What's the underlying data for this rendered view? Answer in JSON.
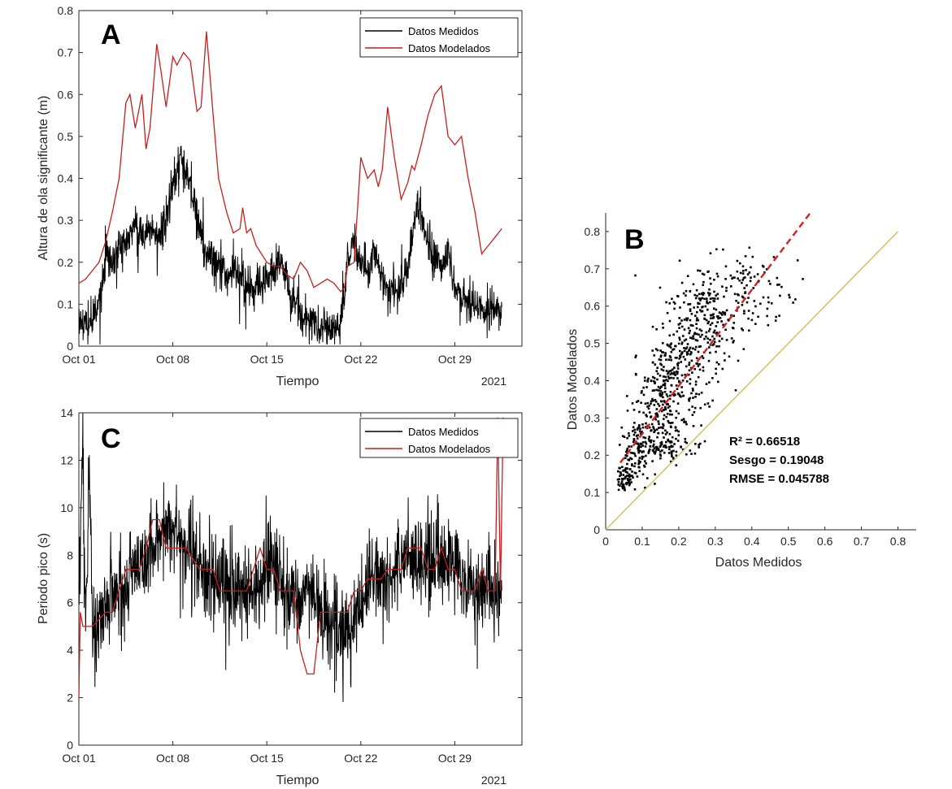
{
  "chart_data": [
    {
      "id": "A",
      "type": "line",
      "panel_label": "A",
      "xlabel": "Tiempo",
      "ylabel": "Altura de ola significante (m)",
      "x_year_label": "2021",
      "xlim": [
        0,
        33
      ],
      "ylim": [
        0,
        0.8
      ],
      "xticks": [
        0,
        7,
        14,
        21,
        28
      ],
      "xtick_labels": [
        "Oct 01",
        "Oct 08",
        "Oct 15",
        "Oct 22",
        "Oct 29"
      ],
      "yticks": [
        0,
        0.1,
        0.2,
        0.3,
        0.4,
        0.5,
        0.6,
        0.7,
        0.8
      ],
      "ytick_labels": [
        "0",
        "0.1",
        "0.2",
        "0.3",
        "0.4",
        "0.5",
        "0.6",
        "0.7",
        "0.8"
      ],
      "legend_position": "top-right",
      "series": [
        {
          "name": "Datos Medidos",
          "color": "#000000",
          "noise": 0.025,
          "x": [
            0,
            0.3,
            0.8,
            1.3,
            1.7,
            2.0,
            2.5,
            3.0,
            3.3,
            3.7,
            4.3,
            4.8,
            5.3,
            6.0,
            6.5,
            7.0,
            7.5,
            8.0,
            8.5,
            9.0,
            9.5,
            10.3,
            11.0,
            11.7,
            12.3,
            13.0,
            14.0,
            14.7,
            15.3,
            15.8,
            16.3,
            16.6,
            17.0,
            17.5,
            18.0,
            18.5,
            19.0,
            19.5,
            20.0,
            20.5,
            21.0,
            21.5,
            22.0,
            22.5,
            23.0,
            23.5,
            24.0,
            24.5,
            25.0,
            25.3,
            25.7,
            26.3,
            27.0,
            27.5,
            28.0,
            28.5,
            29.0,
            29.5,
            30.0,
            30.5,
            31.0,
            31.5
          ],
          "y": [
            0.05,
            0.06,
            0.05,
            0.08,
            0.13,
            0.22,
            0.2,
            0.24,
            0.22,
            0.27,
            0.3,
            0.25,
            0.28,
            0.27,
            0.3,
            0.38,
            0.44,
            0.42,
            0.34,
            0.28,
            0.22,
            0.2,
            0.17,
            0.18,
            0.15,
            0.14,
            0.15,
            0.2,
            0.19,
            0.1,
            0.1,
            0.08,
            0.07,
            0.06,
            0.05,
            0.05,
            0.05,
            0.05,
            0.19,
            0.25,
            0.19,
            0.18,
            0.22,
            0.17,
            0.14,
            0.13,
            0.15,
            0.18,
            0.3,
            0.35,
            0.29,
            0.21,
            0.2,
            0.23,
            0.13,
            0.11,
            0.1,
            0.09,
            0.08,
            0.08,
            0.09,
            0.08
          ]
        },
        {
          "name": "Datos Modelados",
          "color": "#c81e1e",
          "noise": 0,
          "x": [
            0,
            0.5,
            1.0,
            1.5,
            1.8,
            2.0,
            2.5,
            3.0,
            3.5,
            3.8,
            4.2,
            4.7,
            5.0,
            5.3,
            5.8,
            6.1,
            6.5,
            6.8,
            7.0,
            7.3,
            7.8,
            8.3,
            8.8,
            9.1,
            9.5,
            10.0,
            10.4,
            11.0,
            11.5,
            12.0,
            12.2,
            12.5,
            12.8,
            13.2,
            13.6,
            14.0,
            14.5,
            15.0,
            15.5,
            16.0,
            16.5,
            17.0,
            17.5,
            18.0,
            18.5,
            19.0,
            19.5,
            19.8,
            20.0,
            20.5,
            21.0,
            21.5,
            22.0,
            22.3,
            22.6,
            23.0,
            23.5,
            24.0,
            24.5,
            24.8,
            25.0,
            25.5,
            26.0,
            26.5,
            27.0,
            27.5,
            28.0,
            28.5,
            29.0,
            29.5,
            30.0,
            30.5,
            31.0,
            31.5
          ],
          "y": [
            0.15,
            0.16,
            0.18,
            0.2,
            0.23,
            0.25,
            0.32,
            0.4,
            0.58,
            0.6,
            0.52,
            0.6,
            0.47,
            0.52,
            0.72,
            0.66,
            0.57,
            0.64,
            0.69,
            0.67,
            0.7,
            0.68,
            0.56,
            0.57,
            0.75,
            0.55,
            0.4,
            0.32,
            0.27,
            0.28,
            0.33,
            0.27,
            0.28,
            0.24,
            0.22,
            0.2,
            0.19,
            0.19,
            0.17,
            0.16,
            0.2,
            0.18,
            0.14,
            0.15,
            0.16,
            0.15,
            0.13,
            0.14,
            0.19,
            0.2,
            0.45,
            0.4,
            0.42,
            0.38,
            0.42,
            0.57,
            0.45,
            0.35,
            0.39,
            0.43,
            0.42,
            0.48,
            0.55,
            0.6,
            0.62,
            0.5,
            0.48,
            0.5,
            0.4,
            0.32,
            0.22,
            0.24,
            0.26,
            0.28
          ]
        }
      ]
    },
    {
      "id": "B",
      "type": "scatter",
      "panel_label": "B",
      "xlabel": "Datos Medidos",
      "ylabel": "Datos Modelados",
      "xlim": [
        0,
        0.85
      ],
      "ylim": [
        0,
        0.85
      ],
      "xticks": [
        0,
        0.1,
        0.2,
        0.3,
        0.4,
        0.5,
        0.6,
        0.7,
        0.8
      ],
      "yticks": [
        0,
        0.1,
        0.2,
        0.3,
        0.4,
        0.5,
        0.6,
        0.7,
        0.8
      ],
      "tick_labels": [
        "0",
        "0.1",
        "0.2",
        "0.3",
        "0.4",
        "0.5",
        "0.6",
        "0.7",
        "0.8"
      ],
      "one_to_one_line": {
        "x": [
          0,
          0.8
        ],
        "y": [
          0,
          0.8
        ],
        "color": "#d9c26a"
      },
      "fit_line": {
        "x": [
          0.04,
          0.56
        ],
        "y": [
          0.18,
          0.85
        ],
        "color": "#d62020"
      },
      "stats": {
        "r2": "R² = 0.66518",
        "sesgo": "Sesgo = 0.19048",
        "rmse": "RMSE = 0.045788"
      },
      "scatter_clusters": [
        {
          "cx": 0.05,
          "cy": 0.14,
          "sx": 0.012,
          "sy": 0.02,
          "n": 70
        },
        {
          "cx": 0.09,
          "cy": 0.22,
          "sx": 0.02,
          "sy": 0.05,
          "n": 110
        },
        {
          "cx": 0.15,
          "cy": 0.35,
          "sx": 0.03,
          "sy": 0.08,
          "n": 230
        },
        {
          "cx": 0.22,
          "cy": 0.46,
          "sx": 0.035,
          "sy": 0.09,
          "n": 190
        },
        {
          "cx": 0.28,
          "cy": 0.56,
          "sx": 0.04,
          "sy": 0.07,
          "n": 170
        },
        {
          "cx": 0.4,
          "cy": 0.65,
          "sx": 0.06,
          "sy": 0.05,
          "n": 100
        },
        {
          "cx": 0.17,
          "cy": 0.22,
          "sx": 0.05,
          "sy": 0.012,
          "n": 70
        }
      ]
    },
    {
      "id": "C",
      "type": "line",
      "panel_label": "C",
      "xlabel": "Tiempo",
      "ylabel": "Periodo pico (s)",
      "x_year_label": "2021",
      "xlim": [
        0,
        33
      ],
      "ylim": [
        0,
        14
      ],
      "xticks": [
        0,
        7,
        14,
        21,
        28
      ],
      "xtick_labels": [
        "Oct 01",
        "Oct 08",
        "Oct 15",
        "Oct 22",
        "Oct 29"
      ],
      "yticks": [
        0,
        2,
        4,
        6,
        8,
        10,
        12,
        14
      ],
      "ytick_labels": [
        "0",
        "2",
        "4",
        "6",
        "8",
        "10",
        "12",
        "14"
      ],
      "legend_position": "top-right",
      "series": [
        {
          "name": "Datos Medidos",
          "color": "#000000",
          "noise": 0.9,
          "x": [
            0,
            0.3,
            0.5,
            0.8,
            1.0,
            1.5,
            2.0,
            2.5,
            3.0,
            3.5,
            4.0,
            4.5,
            5.0,
            5.5,
            6.0,
            6.5,
            7.0,
            7.5,
            8.0,
            8.5,
            9.0,
            9.5,
            10.0,
            11.0,
            12.0,
            13.0,
            13.5,
            14.0,
            14.5,
            15.0,
            15.5,
            16.0,
            16.5,
            17.0,
            17.5,
            18.0,
            18.5,
            19.0,
            19.5,
            20.0,
            20.5,
            21.0,
            21.5,
            22.0,
            22.5,
            23.0,
            23.5,
            24.0,
            24.5,
            25.0,
            25.5,
            26.0,
            26.5,
            27.0,
            27.5,
            28.0,
            28.5,
            29.0,
            29.5,
            30.0,
            30.5,
            31.0,
            31.3,
            31.5
          ],
          "y": [
            7,
            12,
            5,
            12,
            5,
            5,
            6,
            6.5,
            6.5,
            7,
            7.5,
            7.5,
            8,
            8.5,
            9,
            9,
            9,
            8.5,
            8.5,
            8,
            7.5,
            7,
            7,
            6.5,
            6.5,
            6.5,
            7,
            7.5,
            7.5,
            7,
            6.5,
            6.5,
            6,
            6.5,
            6,
            5.5,
            5.5,
            5,
            5,
            4.5,
            5,
            6,
            6.5,
            6.5,
            7,
            7,
            7.5,
            7.5,
            8,
            7.5,
            7.5,
            7.5,
            7.5,
            7.5,
            7.5,
            7.5,
            7,
            7,
            6.5,
            6.5,
            6.5,
            6.5,
            6.5,
            6.5
          ]
        },
        {
          "name": "Datos Modelados",
          "color": "#c81e1e",
          "noise": 0,
          "x": [
            0,
            0.1,
            0.3,
            1.0,
            2.0,
            2.5,
            3.0,
            3.5,
            4.0,
            4.5,
            5.0,
            5.5,
            6.0,
            6.5,
            7.0,
            7.5,
            8.0,
            9.0,
            10.0,
            10.5,
            11.0,
            11.5,
            12.0,
            12.5,
            13.0,
            13.5,
            14.0,
            14.5,
            15.0,
            15.5,
            16.0,
            16.5,
            17.0,
            17.5,
            18.0,
            18.5,
            19.0,
            19.5,
            20.0,
            20.5,
            21.0,
            21.5,
            22.0,
            22.5,
            23.0,
            23.5,
            24.0,
            24.5,
            25.0,
            25.5,
            26.0,
            26.5,
            27.0,
            27.5,
            28.0,
            28.5,
            29.0,
            29.5,
            30.0,
            30.5,
            31.0,
            31.2,
            31.4,
            31.6
          ],
          "y": [
            2,
            5.6,
            5,
            5,
            5.6,
            5.6,
            6.5,
            7.4,
            7.4,
            7.4,
            8.3,
            9.5,
            9.5,
            8.3,
            8.3,
            8.3,
            8.3,
            7.4,
            7.4,
            6.5,
            6.5,
            6.5,
            6.5,
            6.5,
            7.4,
            8.3,
            7.4,
            7.4,
            6.5,
            6.5,
            6.5,
            4,
            3,
            3,
            5.6,
            5.6,
            5.6,
            5.6,
            5.6,
            6.5,
            6.5,
            7,
            7,
            7,
            7.4,
            7.4,
            7.4,
            8.3,
            8.3,
            8.3,
            7.4,
            7.4,
            8.3,
            7.4,
            7.4,
            6.5,
            6.5,
            6.5,
            7.4,
            6.5,
            6.5,
            13.8,
            6.5,
            13.8
          ]
        }
      ]
    }
  ]
}
